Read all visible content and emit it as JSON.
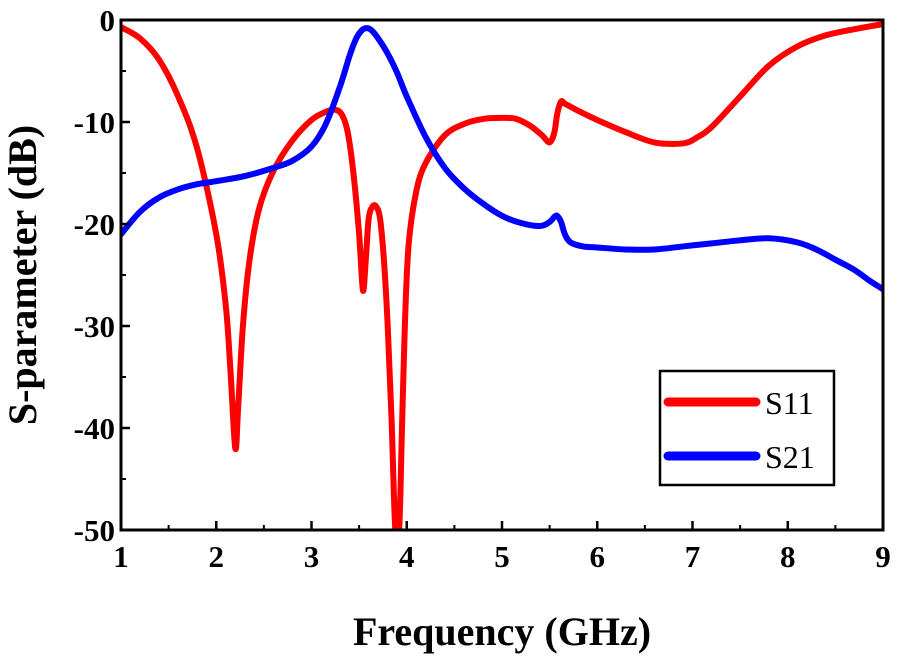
{
  "chart_data": {
    "type": "line",
    "title": "",
    "xlabel": "Frequency (GHz)",
    "ylabel": "S-parameter (dB)",
    "xlim": [
      1,
      9
    ],
    "ylim": [
      -50,
      0
    ],
    "xticks": [
      1,
      2,
      3,
      4,
      5,
      6,
      7,
      8,
      9
    ],
    "yticks": [
      0,
      -10,
      -20,
      -30,
      -40,
      -50
    ],
    "xtick_labels": [
      "1",
      "2",
      "3",
      "4",
      "5",
      "6",
      "7",
      "8",
      "9"
    ],
    "ytick_labels": [
      "0",
      "-10",
      "-20",
      "-30",
      "-40",
      "-50"
    ],
    "legend_position": "bottom-right",
    "grid": false,
    "series": [
      {
        "name": "S11",
        "color": "#ff0000",
        "x": [
          1.0,
          1.2,
          1.4,
          1.6,
          1.8,
          2.0,
          2.1,
          2.15,
          2.2,
          2.23,
          2.28,
          2.35,
          2.45,
          2.6,
          2.8,
          3.0,
          3.15,
          3.25,
          3.32,
          3.38,
          3.44,
          3.5,
          3.54,
          3.57,
          3.6,
          3.64,
          3.68,
          3.72,
          3.76,
          3.8,
          3.84,
          3.88,
          3.92,
          3.95,
          3.98,
          4.02,
          4.1,
          4.2,
          4.4,
          4.6,
          4.8,
          5.0,
          5.15,
          5.3,
          5.42,
          5.5,
          5.55,
          5.58,
          5.62,
          5.66,
          5.7,
          5.8,
          6.0,
          6.3,
          6.6,
          6.9,
          7.05,
          7.2,
          7.5,
          7.8,
          8.1,
          8.4,
          8.7,
          9.0
        ],
        "y": [
          -0.7,
          -1.8,
          -3.9,
          -7.5,
          -12.6,
          -21.0,
          -28.0,
          -34.5,
          -42.0,
          -38.0,
          -30.0,
          -23.5,
          -18.5,
          -14.8,
          -11.8,
          -9.8,
          -9.0,
          -8.8,
          -9.3,
          -11.0,
          -15.0,
          -21.0,
          -26.5,
          -23.5,
          -19.5,
          -18.3,
          -18.3,
          -19.5,
          -23.5,
          -30.0,
          -39.0,
          -50.0,
          -50.0,
          -40.0,
          -30.0,
          -22.0,
          -16.8,
          -14.0,
          -11.3,
          -10.2,
          -9.7,
          -9.6,
          -9.7,
          -10.4,
          -11.3,
          -12.0,
          -11.0,
          -9.2,
          -8.0,
          -8.2,
          -8.4,
          -8.9,
          -9.8,
          -11.0,
          -12.0,
          -12.1,
          -11.5,
          -10.5,
          -7.5,
          -4.5,
          -2.6,
          -1.5,
          -0.9,
          -0.4
        ]
      },
      {
        "name": "S21",
        "color": "#0000ff",
        "x": [
          1.0,
          1.2,
          1.4,
          1.6,
          1.8,
          2.0,
          2.3,
          2.6,
          2.8,
          3.0,
          3.15,
          3.3,
          3.4,
          3.47,
          3.53,
          3.58,
          3.63,
          3.7,
          3.8,
          3.9,
          4.0,
          4.2,
          4.4,
          4.6,
          4.8,
          5.0,
          5.2,
          5.4,
          5.5,
          5.55,
          5.58,
          5.62,
          5.66,
          5.72,
          5.85,
          6.0,
          6.3,
          6.6,
          6.9,
          7.2,
          7.5,
          7.8,
          8.1,
          8.3,
          8.5,
          8.7,
          8.85,
          9.0
        ],
        "y": [
          -21.0,
          -18.8,
          -17.4,
          -16.6,
          -16.1,
          -15.8,
          -15.3,
          -14.5,
          -13.8,
          -12.4,
          -10.2,
          -6.5,
          -3.5,
          -1.8,
          -1.0,
          -0.8,
          -1.0,
          -1.8,
          -3.3,
          -5.2,
          -7.5,
          -11.5,
          -14.5,
          -16.5,
          -18.0,
          -19.2,
          -19.9,
          -20.2,
          -19.8,
          -19.3,
          -19.2,
          -19.8,
          -21.0,
          -21.8,
          -22.2,
          -22.3,
          -22.5,
          -22.5,
          -22.2,
          -21.9,
          -21.6,
          -21.4,
          -21.8,
          -22.5,
          -23.5,
          -24.5,
          -25.5,
          -26.4
        ]
      }
    ]
  }
}
